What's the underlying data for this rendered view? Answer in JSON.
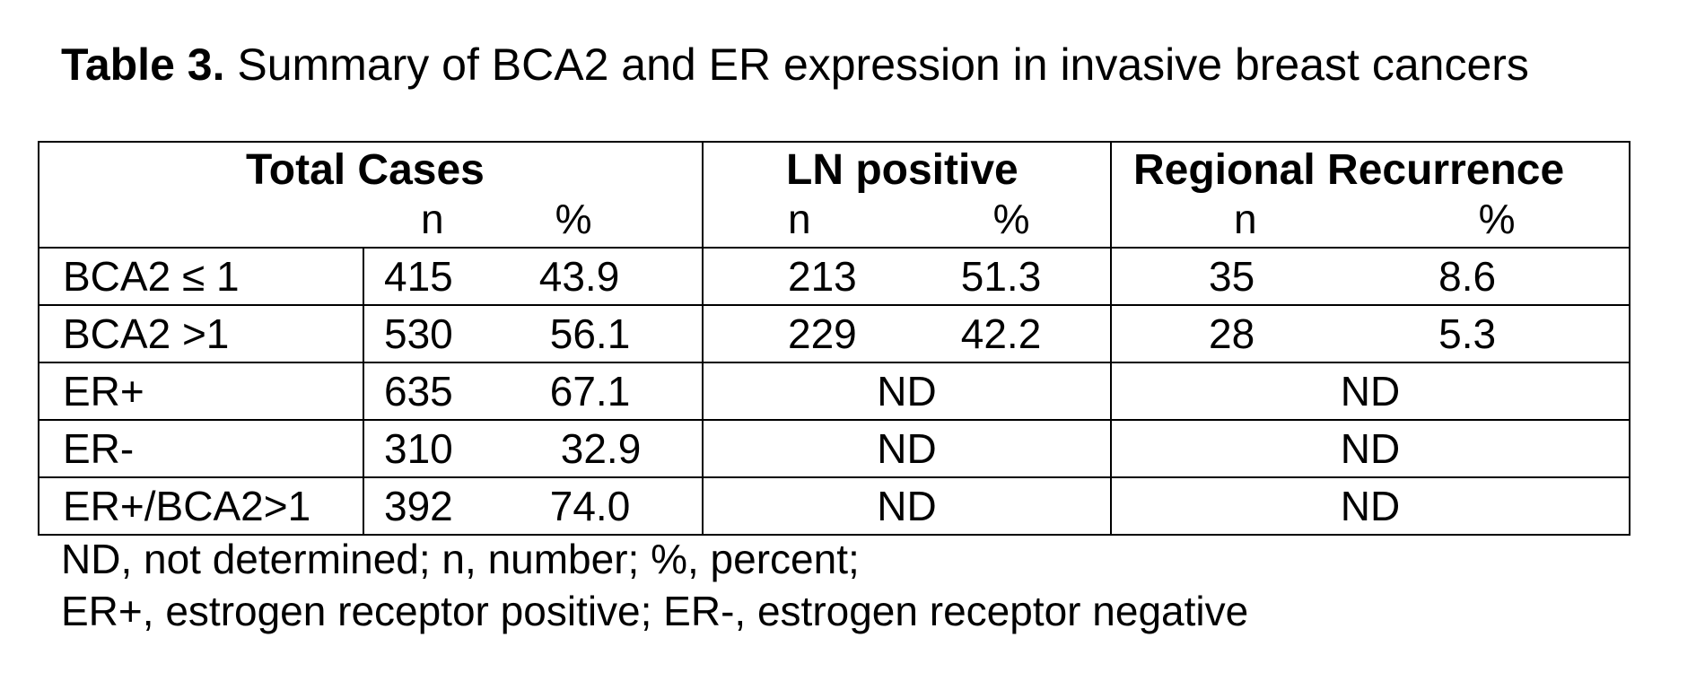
{
  "caption": {
    "label": "Table 3.",
    "text": " Summary of BCA2 and ER expression in invasive breast cancers"
  },
  "table": {
    "groups": [
      {
        "title": "Total Cases",
        "n": "n",
        "pct": "%"
      },
      {
        "title": "LN positive",
        "n": "n",
        "pct": "%"
      },
      {
        "title": "Regional Recurrence",
        "n": "n",
        "pct": "%"
      }
    ],
    "rows": [
      {
        "label": "BCA2 ≤ 1",
        "total_n": "415",
        "total_pct": "43.9",
        "ln_n": "213",
        "ln_pct": "51.3",
        "rr_n": "35",
        "rr_pct": "8.6"
      },
      {
        "label": "BCA2 >1",
        "total_n": "530",
        "total_pct": "56.1",
        "ln_n": "229",
        "ln_pct": "42.2",
        "rr_n": "28",
        "rr_pct": "5.3"
      },
      {
        "label": "ER+",
        "total_n": "635",
        "total_pct": "67.1",
        "ln": "ND",
        "rr": "ND"
      },
      {
        "label": "ER-",
        "total_n": "310",
        "total_pct": "32.9",
        "ln": "ND",
        "rr": "ND"
      },
      {
        "label": "ER+/BCA2>1",
        "total_n": "392",
        "total_pct": "74.0",
        "ln": "ND",
        "rr": "ND"
      }
    ]
  },
  "footnote": {
    "line1": "ND, not determined; n, number; %, percent;",
    "line2": "ER+, estrogen receptor positive; ER-, estrogen receptor negative"
  }
}
